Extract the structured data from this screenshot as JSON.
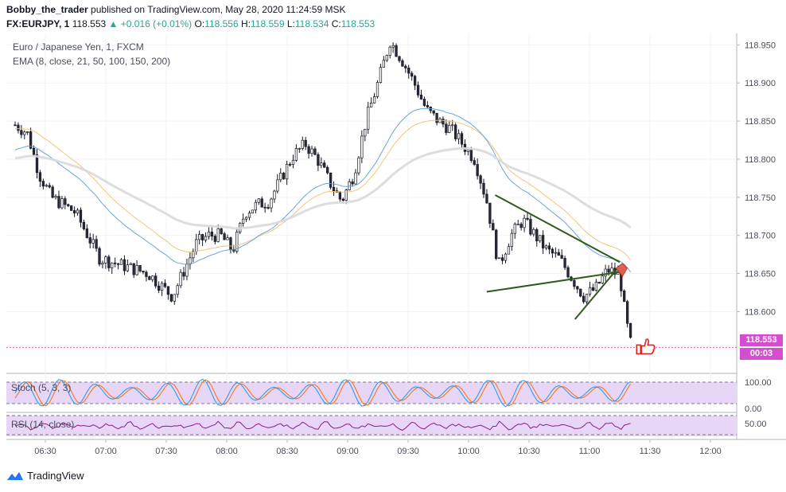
{
  "header": {
    "user": "Bobby_the_trader",
    "published": "published on TradingView.com, May 28, 2020 11:24:59 MSK",
    "symbol": "FX:EURJPY, 1",
    "last": "118.553",
    "change": "▲ +0.016 (+0.01%)",
    "o_label": "O:",
    "o_val": "118.556",
    "h_label": "H:",
    "h_val": "118.559",
    "l_label": "L:",
    "l_val": "118.534",
    "c_label": "C:",
    "c_val": "118.553"
  },
  "legend": {
    "instrument": "Euro / Japanese Yen, 1, FXCM",
    "ema": "EMA (8, close, 21, 50, 100, 150, 200)",
    "stoch": "Stoch (5, 3, 3)",
    "rsi": "RSI (14, close)"
  },
  "price_badge": {
    "price": "118.553",
    "countdown": "00:03"
  },
  "footer": {
    "brand": "TradingView"
  },
  "colors": {
    "candle_up": "#ffffff",
    "candle_down": "#2a2a3a",
    "wick": "#131722",
    "ema_fast": "#5b9bd5",
    "ema_mid": "#f0c06a",
    "ema_slow": "#d9d9d9",
    "triangle": "#2e5a1c",
    "price_line": "#d44fcf",
    "stoch_k": "#2196f3",
    "stoch_d": "#ff6d00",
    "rsi": "#8b1a8b",
    "band": "#e8d6f7",
    "thumb": "#e02424"
  },
  "chart_data": [
    {
      "type": "candlestick",
      "title": "Euro / Japanese Yen, 1, FXCM",
      "x_ticks": [
        "06:30",
        "07:00",
        "07:30",
        "08:00",
        "08:30",
        "09:00",
        "09:30",
        "10:00",
        "10:30",
        "11:00",
        "11:30",
        "12:00"
      ],
      "y_ticks": [
        "118.600",
        "118.650",
        "118.700",
        "118.750",
        "118.800",
        "118.850",
        "118.900",
        "118.950"
      ],
      "ylim": [
        118.52,
        118.965
      ],
      "last_price": 118.553,
      "close_path": [
        [
          6.25,
          118.845
        ],
        [
          6.35,
          118.835
        ],
        [
          6.45,
          118.78
        ],
        [
          6.55,
          118.75
        ],
        [
          6.65,
          118.74
        ],
        [
          6.75,
          118.73
        ],
        [
          6.85,
          118.7
        ],
        [
          6.95,
          118.67
        ],
        [
          7.05,
          118.665
        ],
        [
          7.15,
          118.66
        ],
        [
          7.25,
          118.655
        ],
        [
          7.35,
          118.65
        ],
        [
          7.45,
          118.635
        ],
        [
          7.55,
          118.62
        ],
        [
          7.65,
          118.655
        ],
        [
          7.75,
          118.69
        ],
        [
          7.85,
          118.7
        ],
        [
          7.95,
          118.7
        ],
        [
          8.05,
          118.68
        ],
        [
          8.15,
          118.73
        ],
        [
          8.25,
          118.74
        ],
        [
          8.35,
          118.745
        ],
        [
          8.45,
          118.775
        ],
        [
          8.55,
          118.805
        ],
        [
          8.65,
          118.82
        ],
        [
          8.75,
          118.8
        ],
        [
          8.85,
          118.77
        ],
        [
          8.95,
          118.745
        ],
        [
          9.05,
          118.78
        ],
        [
          9.15,
          118.85
        ],
        [
          9.25,
          118.9
        ],
        [
          9.35,
          118.955
        ],
        [
          9.45,
          118.93
        ],
        [
          9.55,
          118.9
        ],
        [
          9.65,
          118.865
        ],
        [
          9.75,
          118.85
        ],
        [
          9.85,
          118.84
        ],
        [
          9.95,
          118.82
        ],
        [
          10.05,
          118.8
        ],
        [
          10.15,
          118.745
        ],
        [
          10.25,
          118.66
        ],
        [
          10.35,
          118.7
        ],
        [
          10.45,
          118.72
        ],
        [
          10.55,
          118.7
        ],
        [
          10.65,
          118.68
        ],
        [
          10.75,
          118.67
        ],
        [
          10.85,
          118.645
        ],
        [
          10.95,
          118.62
        ],
        [
          11.05,
          118.63
        ],
        [
          11.15,
          118.655
        ],
        [
          11.25,
          118.648
        ],
        [
          11.3,
          118.59
        ],
        [
          11.35,
          118.55
        ]
      ],
      "ema": [
        {
          "values_approx_start": 118.81,
          "values_approx_end": 118.68
        },
        {
          "values_approx_start": 118.84,
          "values_approx_end": 118.705
        },
        {
          "values_approx_start": 118.8,
          "values_approx_end": 118.72
        }
      ],
      "annotations": [
        "symmetrical triangle",
        "breakdown arrow",
        "thumbs up"
      ]
    },
    {
      "type": "line",
      "title": "Stoch (5, 3, 3)",
      "y_ticks": [
        "0.00",
        "100.00"
      ],
      "ylim": [
        0,
        100
      ]
    },
    {
      "type": "line",
      "title": "RSI (14, close)",
      "y_ticks": [
        "50.00"
      ],
      "ylim": [
        0,
        100
      ]
    }
  ]
}
